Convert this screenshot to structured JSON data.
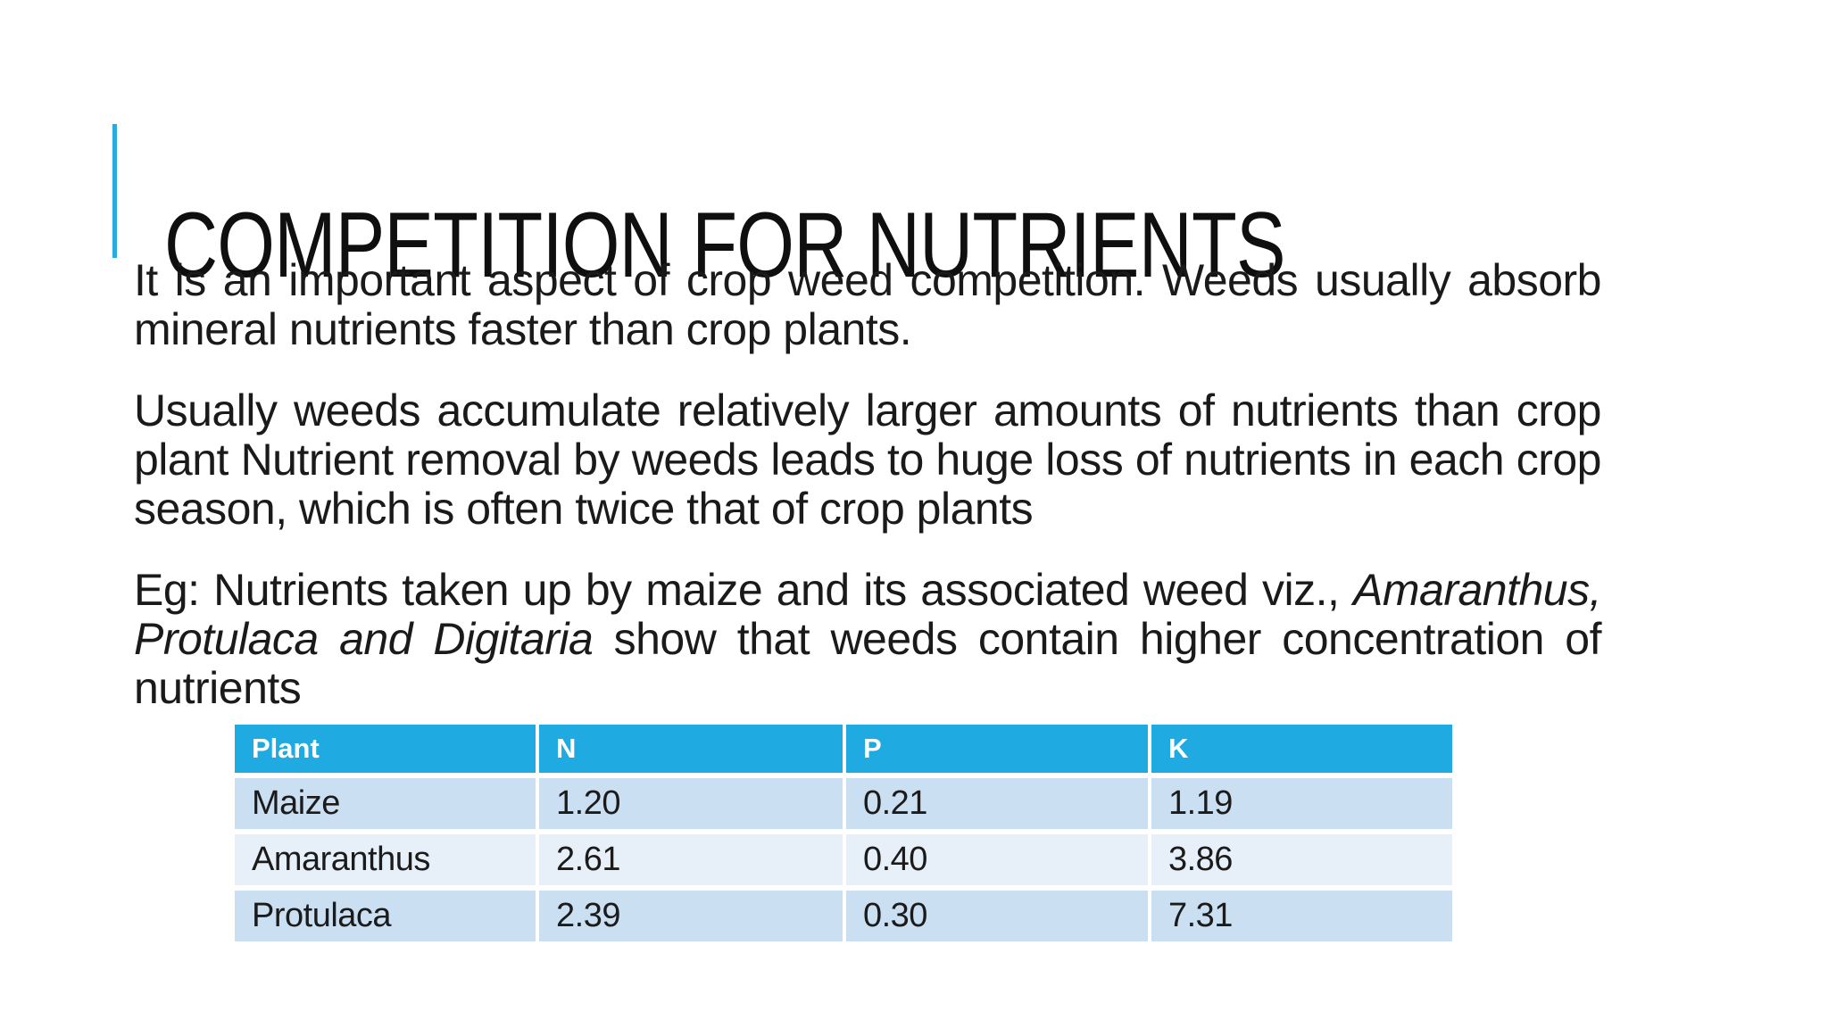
{
  "slide": {
    "title": "COMPETITION FOR NUTRIENTS",
    "paragraphs": {
      "p1": "It is an important aspect of crop weed competition. Weeds usually absorb mineral nutrients faster than crop plants.",
      "p2": "Usually weeds accumulate relatively larger amounts of nutrients than crop plant Nutrient removal by weeds leads to huge loss of nutrients in each crop season, which is often twice that of crop plants",
      "p3_prefix": "Eg: Nutrients taken up by maize and its associated weed viz., ",
      "p3_italic": "Amaranthus, Protulaca and Digitaria",
      "p3_suffix": " show that weeds contain higher concentration of nutrients"
    },
    "table": {
      "headers": [
        "Plant",
        "N",
        "P",
        "K"
      ],
      "rows": [
        [
          "Maize",
          "1.20",
          "0.21",
          "1.19"
        ],
        [
          "Amaranthus",
          "2.61",
          "0.40",
          "3.86"
        ],
        [
          "Protulaca",
          "2.39",
          "0.30",
          "7.31"
        ]
      ]
    },
    "colors": {
      "accent": "#29ABE2",
      "table_header_bg": "#1FABE2",
      "table_header_text": "#FFFFFF",
      "table_row_odd_bg": "#CBDFF2",
      "table_row_even_bg": "#E7EFF9",
      "body_text": "#1A1A1A",
      "title_text": "#0F0F0F"
    }
  }
}
